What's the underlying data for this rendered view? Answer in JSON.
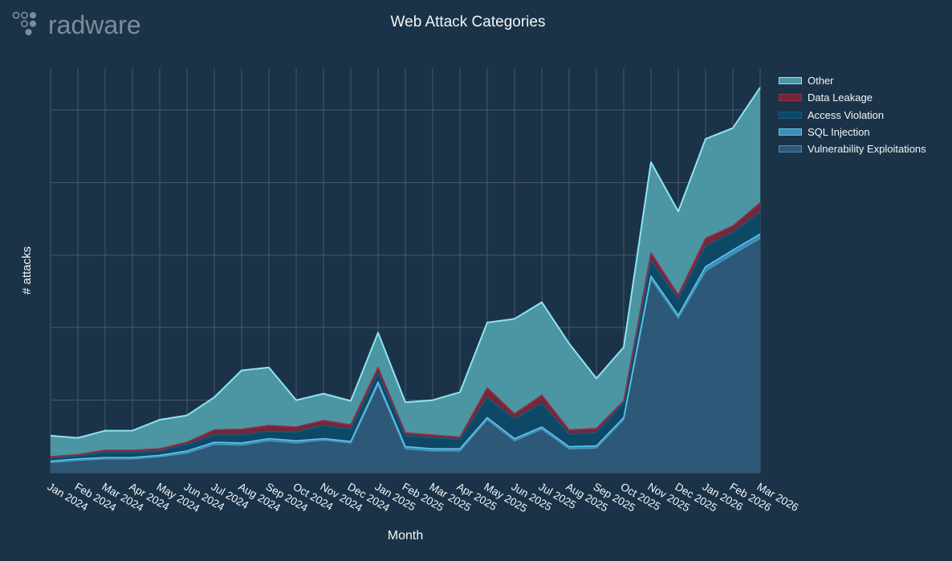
{
  "logo": {
    "text": "radware"
  },
  "chart_data": {
    "type": "area",
    "stacked": true,
    "title": "Web Attack Categories",
    "xlabel": "Month",
    "ylabel": "# attacks",
    "grid": true,
    "legend": "top-right",
    "ylim": [
      0,
      5.575
    ],
    "categories": [
      "Jan 2024",
      "Feb 2024",
      "Mar 2024",
      "Apr 2024",
      "May 2024",
      "Jun 2024",
      "Jul 2024",
      "Aug 2024",
      "Sep 2024",
      "Oct 2024",
      "Nov 2024",
      "Dec 2024",
      "Jan 2025",
      "Feb 2025",
      "Mar 2025",
      "Apr 2025",
      "May 2025",
      "Jun 2025",
      "Jul 2025",
      "Aug 2025",
      "Sep 2025",
      "Oct 2025",
      "Nov 2025",
      "Dec 2025",
      "Jan 2026",
      "Feb 2026",
      "Mar 2026"
    ],
    "series": [
      {
        "name": "Vulnerability Exploitations",
        "color": "#2d5878",
        "line_color": "#4b8fbb",
        "values": [
          0.14,
          0.17,
          0.19,
          0.19,
          0.22,
          0.27,
          0.39,
          0.38,
          0.44,
          0.41,
          0.45,
          0.41,
          1.21,
          0.33,
          0.3,
          0.3,
          0.73,
          0.44,
          0.6,
          0.33,
          0.34,
          0.73,
          2.67,
          2.13,
          2.78,
          3.01,
          3.23
        ]
      },
      {
        "name": "SQL Injection",
        "color": "#3a8fb8",
        "line_color": "#5ec3e8",
        "values": [
          0.02,
          0.02,
          0.02,
          0.02,
          0.02,
          0.03,
          0.03,
          0.03,
          0.03,
          0.03,
          0.02,
          0.02,
          0.04,
          0.03,
          0.03,
          0.03,
          0.03,
          0.03,
          0.03,
          0.03,
          0.03,
          0.03,
          0.04,
          0.04,
          0.06,
          0.06,
          0.06
        ]
      },
      {
        "name": "Access Violation",
        "color": "#0d4866",
        "line_color": "#0f5a7e",
        "values": [
          0.04,
          0.04,
          0.07,
          0.07,
          0.06,
          0.09,
          0.1,
          0.11,
          0.1,
          0.12,
          0.18,
          0.17,
          0.12,
          0.15,
          0.15,
          0.13,
          0.27,
          0.27,
          0.32,
          0.17,
          0.18,
          0.2,
          0.21,
          0.22,
          0.28,
          0.24,
          0.3
        ]
      },
      {
        "name": "Data Leakage",
        "color": "#72283a",
        "line_color": "#922f47",
        "values": [
          0.02,
          0.02,
          0.03,
          0.03,
          0.03,
          0.03,
          0.07,
          0.08,
          0.08,
          0.07,
          0.07,
          0.06,
          0.08,
          0.04,
          0.04,
          0.03,
          0.14,
          0.07,
          0.12,
          0.06,
          0.06,
          0.03,
          0.11,
          0.06,
          0.11,
          0.09,
          0.13
        ]
      },
      {
        "name": "Other",
        "color": "#4c95a3",
        "line_color": "#8fe5f2",
        "values": [
          0.29,
          0.23,
          0.27,
          0.27,
          0.4,
          0.37,
          0.45,
          0.81,
          0.8,
          0.37,
          0.37,
          0.33,
          0.48,
          0.42,
          0.48,
          0.62,
          0.9,
          1.31,
          1.28,
          1.19,
          0.69,
          0.74,
          1.25,
          1.15,
          1.37,
          1.35,
          1.59
        ]
      }
    ]
  }
}
